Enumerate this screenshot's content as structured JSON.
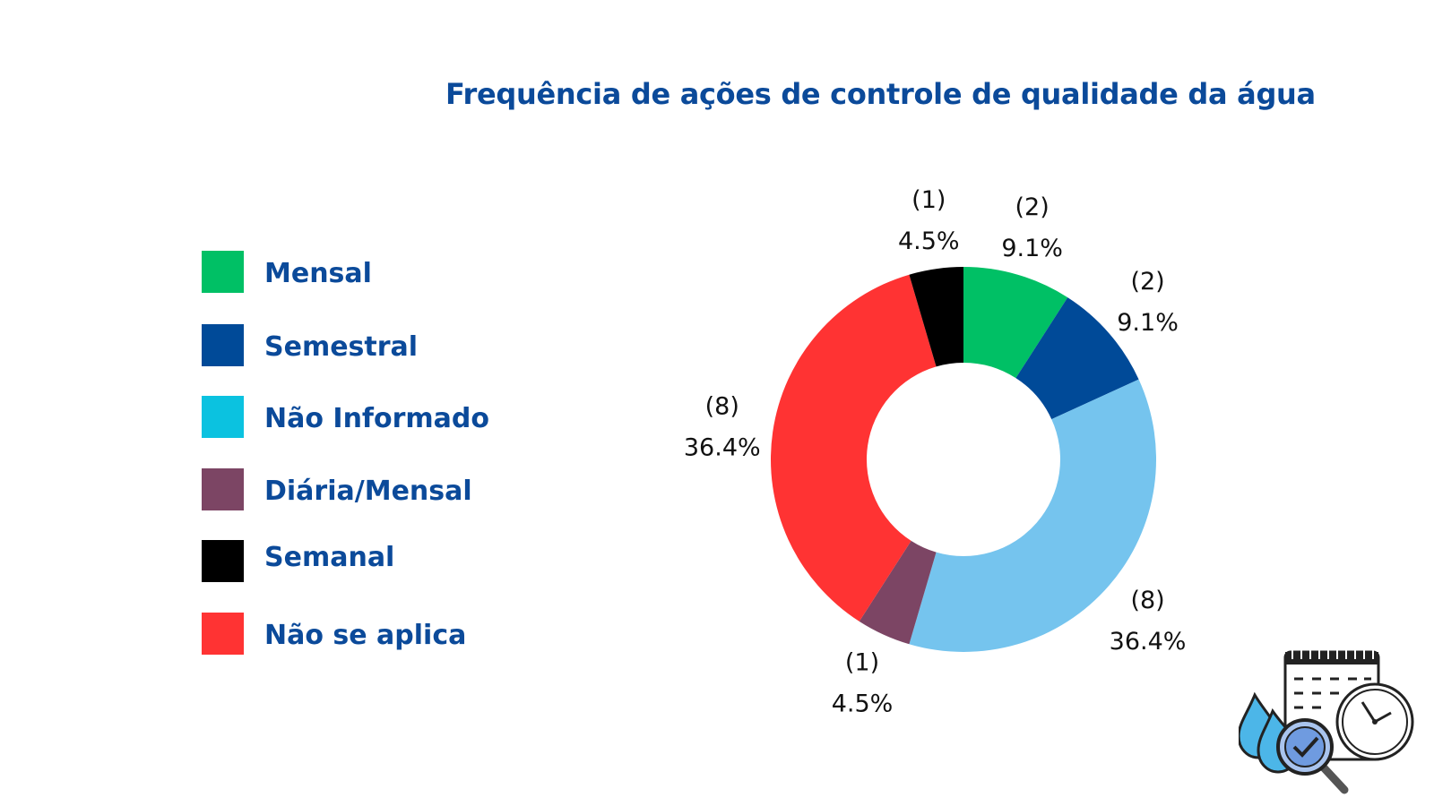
{
  "chart_data": {
    "type": "pie",
    "title": "Frequência de ações de controle de qualidade da água",
    "donut": true,
    "legend_position": "left",
    "slices": [
      {
        "name": "Mensal",
        "count": 2,
        "percent": 9.1,
        "count_label": "(2)",
        "percent_label": "9.1%",
        "color": "#00c065"
      },
      {
        "name": "Semestral",
        "count": 2,
        "percent": 9.1,
        "count_label": "(2)",
        "percent_label": "9.1%",
        "color": "#004a98"
      },
      {
        "name": "Não Informado",
        "count": 8,
        "percent": 36.4,
        "count_label": "(8)",
        "percent_label": "36.4%",
        "color": "#75c4ee"
      },
      {
        "name": "Diária/Mensal",
        "count": 1,
        "percent": 4.5,
        "count_label": "(1)",
        "percent_label": "4.5%",
        "color": "#7c4564"
      },
      {
        "name": "Não se aplica",
        "count": 8,
        "percent": 36.4,
        "count_label": "(8)",
        "percent_label": "36.4%",
        "color": "#ff3333"
      },
      {
        "name": "Semanal",
        "count": 1,
        "percent": 4.5,
        "count_label": "(1)",
        "percent_label": "4.5%",
        "color": "#000000"
      }
    ],
    "legend": [
      {
        "label": "Mensal",
        "color": "#00c065"
      },
      {
        "label": "Semestral",
        "color": "#004a98"
      },
      {
        "label": "Não Informado",
        "color": "#0bc2e0"
      },
      {
        "label": "Diária/Mensal",
        "color": "#7c4564"
      },
      {
        "label": "Semanal",
        "color": "#000000"
      },
      {
        "label": "Não se aplica",
        "color": "#ff3333"
      }
    ]
  },
  "decoration": {
    "icon": "calendar-clock-water-inspection-icon"
  },
  "colors": {
    "title": "#0b4a9a",
    "legend_text": "#0b4a9a"
  }
}
